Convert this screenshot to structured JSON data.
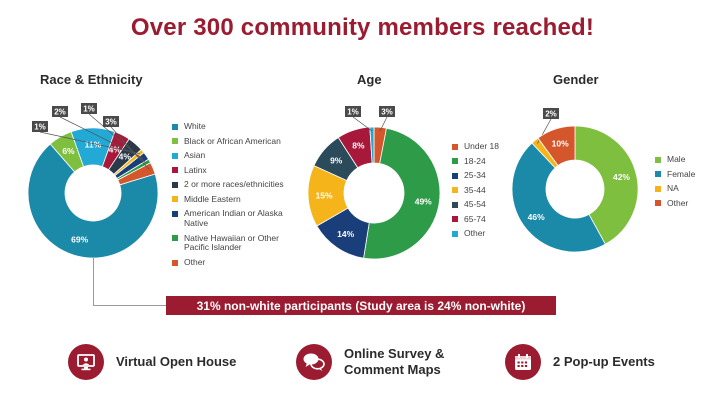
{
  "headline": "Over 300 community members reached!",
  "callout": "31% non-white participants (Study area is 24% non-white)",
  "features": [
    {
      "label": "Virtual Open House",
      "icon": "presentation-icon"
    },
    {
      "label": "Online Survey &\nComment Maps",
      "icon": "chat-bubbles-icon"
    },
    {
      "label": "2 Pop-up Events",
      "icon": "calendar-icon"
    }
  ],
  "colors": {
    "brand": "#9b1b30"
  },
  "chart_data": [
    {
      "type": "pie",
      "title": "Race & Ethnicity",
      "categories": [
        "White",
        "Black or African American",
        "Asian",
        "Latinx",
        "2 or more races/ethnicities",
        "Middle Eastern",
        "American Indian or Alaska Native",
        "Native Hawaiian or Other Pacific Islander",
        "Other"
      ],
      "values": [
        69,
        6,
        11,
        4,
        4,
        1,
        2,
        1,
        3
      ],
      "data_labels": [
        "69%",
        "6%",
        "11%",
        "4%",
        "4%",
        "1%",
        "2%",
        "1%",
        "3%"
      ],
      "colors": [
        "#1b8aa8",
        "#7fbf3f",
        "#22a9d6",
        "#a8183a",
        "#2b3a4a",
        "#f5b51a",
        "#1a3e7a",
        "#2e9b48",
        "#d4562a"
      ],
      "legend_position": "right"
    },
    {
      "type": "pie",
      "title": "Age",
      "categories": [
        "Under 18",
        "18-24",
        "25-34",
        "35-44",
        "45-54",
        "65-74",
        "Other"
      ],
      "values": [
        3,
        49,
        14,
        15,
        9,
        8,
        1
      ],
      "data_labels": [
        "3%",
        "49%",
        "14%",
        "15%",
        "9%",
        "8%",
        "1%"
      ],
      "colors": [
        "#d4562a",
        "#2e9b48",
        "#1a3e7a",
        "#f5b51a",
        "#2b4a5a",
        "#a8183a",
        "#22a9d6"
      ],
      "legend_position": "right"
    },
    {
      "type": "pie",
      "title": "Gender",
      "categories": [
        "Male",
        "Female",
        "NA",
        "Other"
      ],
      "values": [
        42,
        46,
        2,
        10
      ],
      "data_labels": [
        "42%",
        "46%",
        "2%",
        "10%"
      ],
      "colors": [
        "#7fbf3f",
        "#1b8aa8",
        "#f5b51a",
        "#d4562a"
      ],
      "legend_position": "right"
    }
  ]
}
